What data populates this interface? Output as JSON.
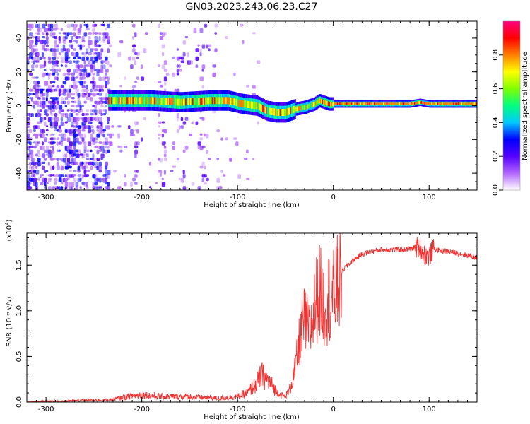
{
  "title": "GN03.2023.243.06.23.C27",
  "chart_data": [
    {
      "type": "heatmap",
      "xlabel": "Height of straight line (km)",
      "ylabel": "Frequency (Hz)",
      "xlim": [
        -320,
        150
      ],
      "ylim": [
        -50,
        50
      ],
      "xticks": [
        -300,
        -200,
        -100,
        0,
        100
      ],
      "yticks": [
        -40,
        -20,
        0,
        20,
        40
      ],
      "colorbar": {
        "label": "Normalized spectral amplitude",
        "range": [
          0,
          1
        ],
        "ticks": [
          "0.0",
          "0.2",
          "0.4",
          "0.6",
          "0.8"
        ],
        "colors": [
          "#ffffff",
          "#b266ff",
          "#5500ff",
          "#0000ff",
          "#00c8ff",
          "#00ff80",
          "#80ff00",
          "#ffff00",
          "#ff8000",
          "#ff0000",
          "#ff0080"
        ]
      },
      "ridge": {
        "x": [
          -235,
          -210,
          -190,
          -160,
          -130,
          -110,
          -95,
          -80,
          -70,
          -60,
          -50,
          -40,
          -30,
          -20,
          -15,
          -10,
          -5,
          0,
          20,
          50,
          80,
          90,
          100,
          150
        ],
        "y": [
          3,
          3,
          3,
          2,
          3,
          3,
          1,
          0,
          -3,
          -4,
          -4,
          -2,
          -1,
          1,
          3,
          2,
          1,
          1,
          1,
          1,
          1,
          2,
          1,
          1
        ]
      }
    },
    {
      "type": "line",
      "xlabel": "Height of straight line (km)",
      "ylabel": "SNR (10 * v/v)",
      "yscale_label": "(x10",
      "yscale_exp": "4",
      "xlim": [
        -320,
        150
      ],
      "ylim": [
        0,
        1.85
      ],
      "xticks": [
        -300,
        -200,
        -100,
        0,
        100
      ],
      "yticks": [
        "0.0",
        "0.5",
        "1.0",
        "1.5"
      ],
      "color": "#ee3333",
      "series": [
        {
          "x": [
            -320,
            -300,
            -280,
            -260,
            -240,
            -230,
            -220,
            -210,
            -200,
            -190,
            -180,
            -170,
            -160,
            -150,
            -140,
            -130,
            -120,
            -110,
            -100,
            -90,
            -80,
            -75,
            -70,
            -65,
            -60,
            -55,
            -50,
            -45,
            -40,
            -35,
            -30,
            -25,
            -20,
            -15,
            -10,
            -5,
            0,
            5,
            10,
            20,
            30,
            40,
            50,
            60,
            70,
            80,
            90,
            95,
            100,
            105,
            110,
            120,
            130,
            140,
            150
          ],
          "y": [
            0.0,
            0.01,
            0.01,
            0.02,
            0.02,
            0.03,
            0.05,
            0.07,
            0.08,
            0.07,
            0.06,
            0.06,
            0.06,
            0.06,
            0.05,
            0.05,
            0.04,
            0.05,
            0.06,
            0.1,
            0.2,
            0.3,
            0.25,
            0.2,
            0.12,
            0.08,
            0.06,
            0.15,
            0.35,
            0.7,
            0.9,
            0.75,
            1.0,
            1.25,
            1.05,
            1.15,
            1.15,
            1.3,
            1.45,
            1.55,
            1.62,
            1.65,
            1.67,
            1.67,
            1.67,
            1.68,
            1.7,
            1.62,
            1.6,
            1.68,
            1.66,
            1.65,
            1.63,
            1.61,
            1.58
          ]
        }
      ]
    }
  ]
}
